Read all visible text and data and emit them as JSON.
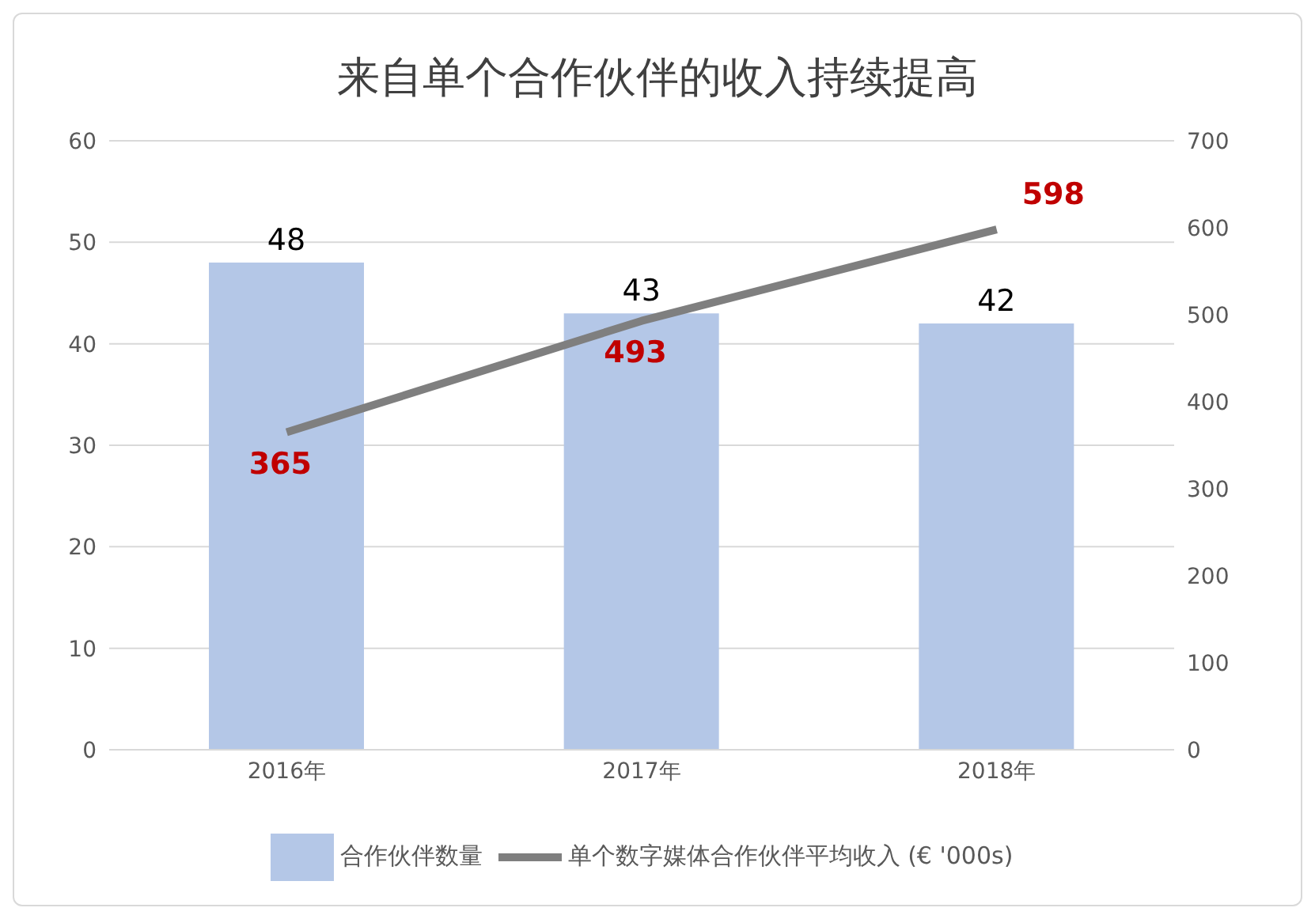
{
  "chart_data": {
    "type": "bar",
    "title": "来自单个合作伙伴的收入持续提高",
    "categories": [
      "2016年",
      "2017年",
      "2018年"
    ],
    "series": [
      {
        "name": "合作伙伴数量",
        "color": "#b4c7e7",
        "values": [
          48,
          43,
          42
        ]
      },
      {
        "name": "单个数字媒体合作伙伴平均收入 (€ '000s)",
        "type": "line",
        "axis": "y2",
        "color": "#7f7f7f",
        "values": [
          365,
          493,
          598
        ]
      }
    ],
    "ylim": [
      0,
      60
    ],
    "yticks": [
      0,
      10,
      20,
      30,
      40,
      50,
      60
    ],
    "y2lim": [
      0,
      700
    ],
    "y2ticks": [
      0,
      100,
      200,
      300,
      400,
      500,
      600,
      700
    ],
    "grid": "y",
    "legend": "bottom",
    "data_labels": true,
    "marker": "none"
  }
}
